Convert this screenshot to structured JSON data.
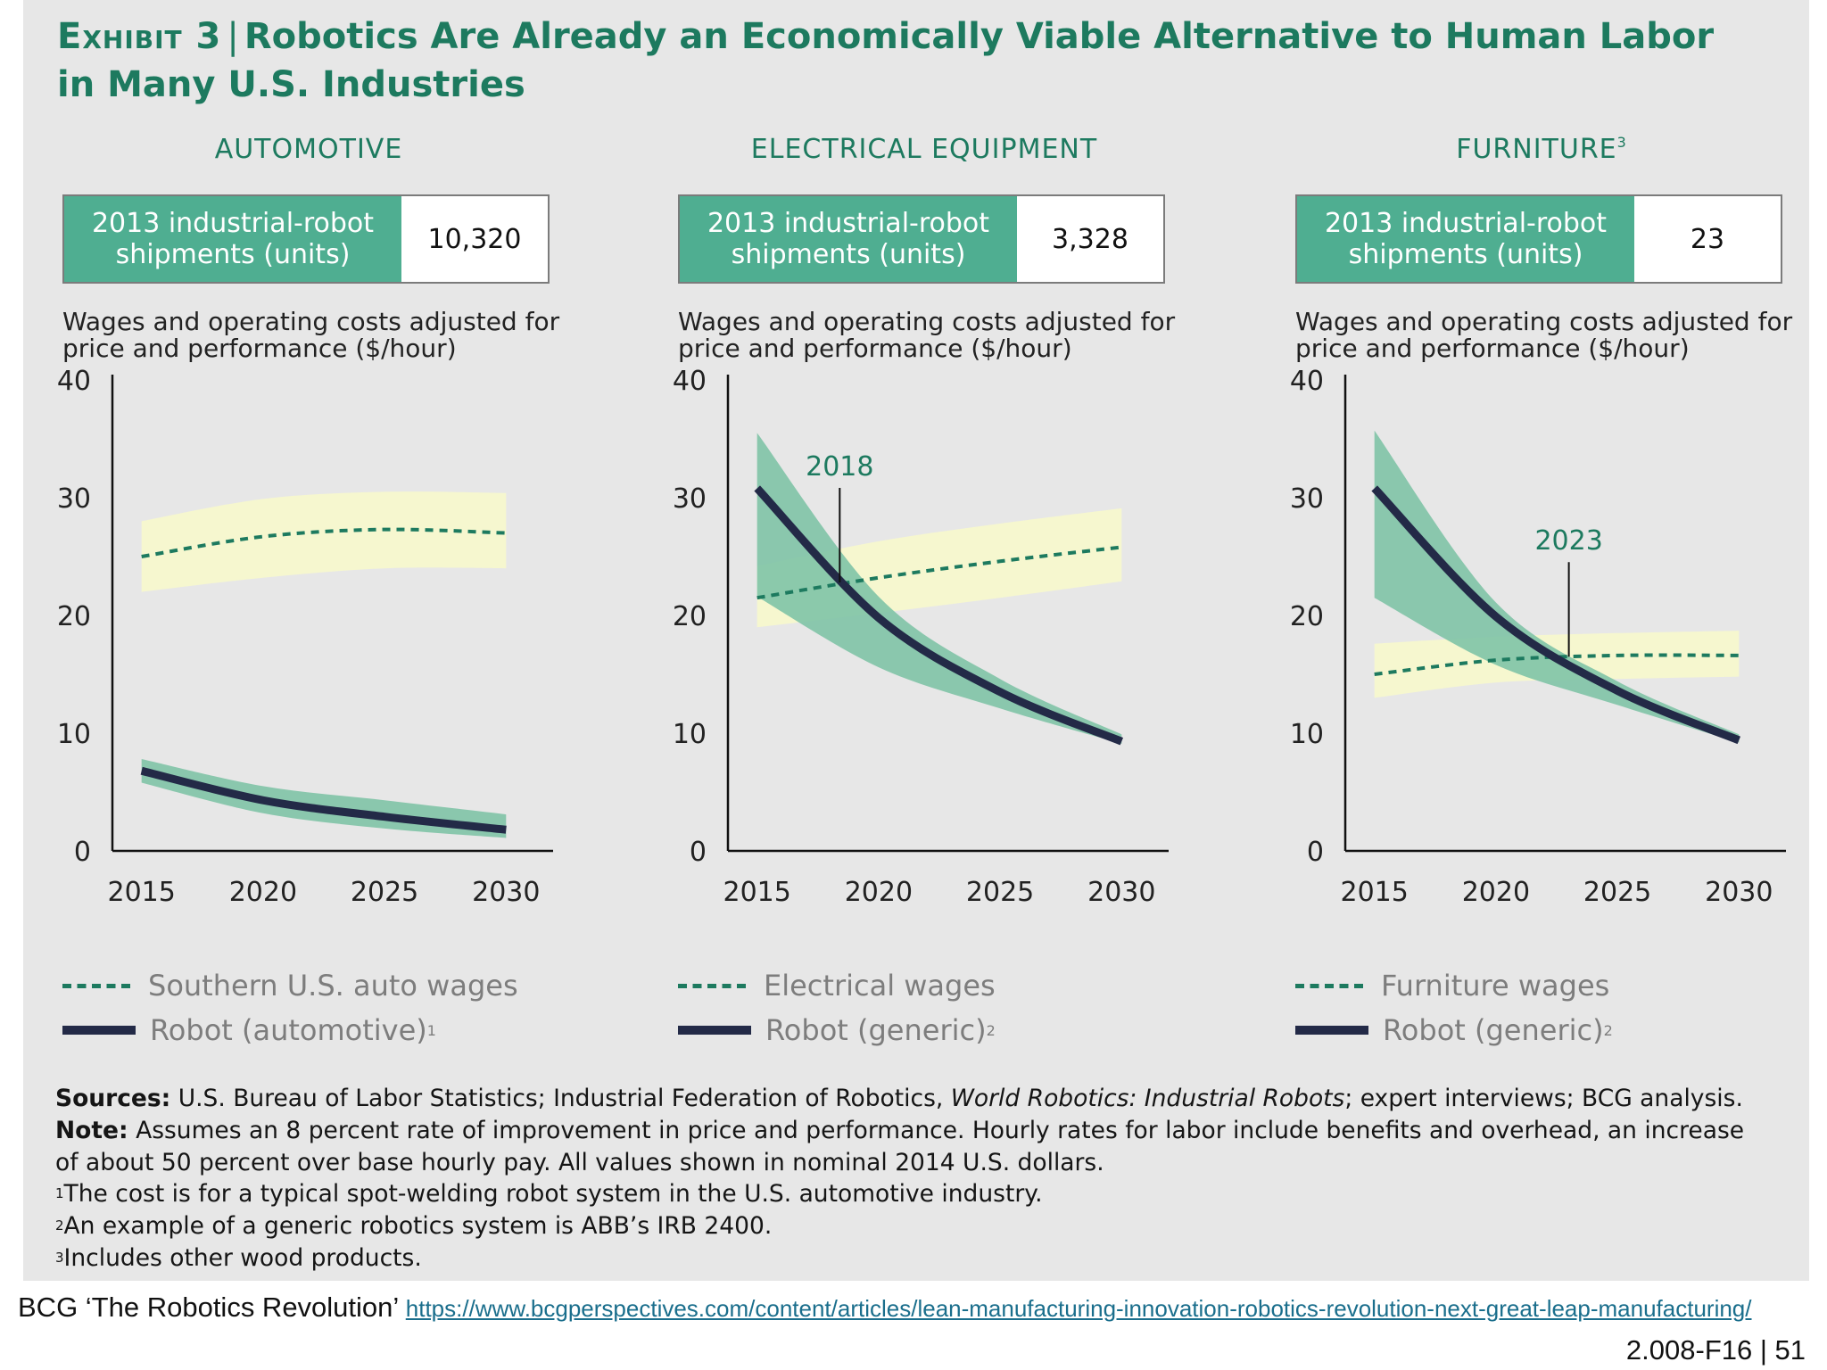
{
  "exhibit": {
    "label": "Exhibit 3",
    "separator": "|",
    "title": "Robotics Are Already an Economically Viable Alternative to Human Labor in Many U.S. Industries"
  },
  "colors": {
    "accent": "#1d7a5f",
    "box_fill": "#4fae91",
    "robot_line": "#232a47",
    "robot_band": "#7fc3a6",
    "wage_band": "#f6f7cf",
    "panel_bg": "#e7e7e7"
  },
  "shipments_label": "2013 industrial-robot shipments (units)",
  "y_description": "Wages and operating costs adjusted for price and performance ($/hour)",
  "chart_data": [
    {
      "type": "line",
      "title": "AUTOMOTIVE",
      "title_sup": "",
      "shipments_2013": "10,320",
      "ylabel": "Wages and operating costs adjusted for price and performance ($/hour)",
      "x": [
        2015,
        2020,
        2025,
        2030
      ],
      "x_ticks": [
        2015,
        2020,
        2025,
        2030
      ],
      "y_ticks": [
        0,
        10,
        20,
        30,
        40
      ],
      "xlim": [
        2013.8,
        2031.2
      ],
      "ylim": [
        0,
        40
      ],
      "series": [
        {
          "name": "Southern U.S. auto wages",
          "sup": "",
          "style": "dashed",
          "values": [
            25,
            26.7,
            27.3,
            27
          ]
        },
        {
          "name": "Robot (automotive)",
          "sup": "1",
          "style": "solid",
          "values": [
            6.8,
            4.3,
            2.9,
            1.8
          ]
        }
      ],
      "wage_band": {
        "upper": [
          28,
          29.9,
          30.5,
          30.4
        ],
        "lower": [
          22,
          23.2,
          24,
          24
        ]
      },
      "robot_band": {
        "upper": [
          7.8,
          5.5,
          4.3,
          3.1
        ],
        "lower": [
          5.8,
          3.2,
          1.9,
          1.1
        ]
      },
      "crossover": null
    },
    {
      "type": "line",
      "title": "ELECTRICAL EQUIPMENT",
      "title_sup": "",
      "shipments_2013": "3,328",
      "ylabel": "Wages and operating costs adjusted for price and performance ($/hour)",
      "x": [
        2015,
        2020,
        2025,
        2030
      ],
      "x_ticks": [
        2015,
        2020,
        2025,
        2030
      ],
      "y_ticks": [
        0,
        10,
        20,
        30,
        40
      ],
      "xlim": [
        2013.8,
        2031.2
      ],
      "ylim": [
        0,
        40
      ],
      "series": [
        {
          "name": "Electrical wages",
          "sup": "",
          "style": "dashed",
          "values": [
            21.5,
            23.2,
            24.6,
            25.8
          ]
        },
        {
          "name": "Robot (generic)",
          "sup": "2",
          "style": "solid",
          "values": [
            30.8,
            19.8,
            13.5,
            9.3
          ]
        }
      ],
      "wage_band": {
        "upper": [
          24.2,
          26.3,
          27.8,
          29.1
        ],
        "lower": [
          19,
          20.2,
          21.5,
          22.9
        ]
      },
      "robot_band": {
        "upper": [
          35.5,
          21.6,
          14.6,
          9.9
        ],
        "lower": [
          21.6,
          15.6,
          12.1,
          9.1
        ]
      },
      "crossover": {
        "label": "2018",
        "x": 2018.4,
        "y": 22.8
      }
    },
    {
      "type": "line",
      "title": "FURNITURE",
      "title_sup": "3",
      "shipments_2013": "23",
      "ylabel": "Wages and operating costs adjusted for price and performance ($/hour)",
      "x": [
        2015,
        2020,
        2025,
        2030
      ],
      "x_ticks": [
        2015,
        2020,
        2025,
        2030
      ],
      "y_ticks": [
        0,
        10,
        20,
        30,
        40
      ],
      "xlim": [
        2013.8,
        2031.2
      ],
      "ylim": [
        0,
        40
      ],
      "series": [
        {
          "name": "Furniture wages",
          "sup": "",
          "style": "dashed",
          "values": [
            15,
            16.2,
            16.6,
            16.6
          ]
        },
        {
          "name": "Robot (generic)",
          "sup": "2",
          "style": "solid",
          "values": [
            30.8,
            19.9,
            13.6,
            9.4
          ]
        }
      ],
      "wage_band": {
        "upper": [
          17.6,
          18.2,
          18.5,
          18.7
        ],
        "lower": [
          13,
          14.3,
          14.6,
          14.8
        ]
      },
      "robot_band": {
        "upper": [
          35.7,
          21.1,
          14.4,
          9.9
        ],
        "lower": [
          21.5,
          15.8,
          12.4,
          9.2
        ]
      },
      "crossover": {
        "label": "2023",
        "x": 2023,
        "y": 16.5
      }
    }
  ],
  "notes": {
    "sources_label": "Sources:",
    "sources_text_a": "U.S. Bureau of Labor Statistics; Industrial Federation of Robotics, ",
    "sources_italic": "World Robotics: Industrial Robots",
    "sources_text_b": "; expert interviews; BCG analysis.",
    "note_label": "Note:",
    "note_text": "Assumes an 8 percent rate of improvement in price and performance. Hourly rates for labor include benefits and overhead, an increase of about 50 percent over base hourly pay. All values shown in nominal 2014 U.S. dollars.",
    "footnotes": [
      {
        "mark": "1",
        "text": "The cost is for a typical spot-welding robot system in the U.S. automotive industry."
      },
      {
        "mark": "2",
        "text": "An example of a generic robotics system is ABB’s IRB 2400."
      },
      {
        "mark": "3",
        "text": "Includes other wood products."
      }
    ]
  },
  "footer": {
    "source_text": "BCG ‘The Robotics Revolution’ ",
    "url": "https://www.bcgperspectives.com/content/articles/lean-manufacturing-innovation-robotics-revolution-next-great-leap-manufacturing/",
    "page_number": "2.008-F16 | 51"
  }
}
